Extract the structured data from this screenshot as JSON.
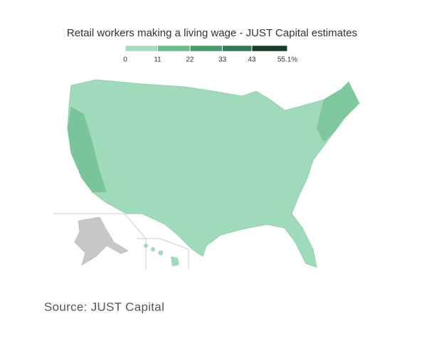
{
  "chart_data": {
    "type": "choropleth",
    "title": "Retail workers making a living wage - JUST Capital estimates",
    "legend": {
      "ticks": [
        0,
        11,
        22,
        33,
        43,
        {
          "value": 55.1,
          "label": "55.1%"
        }
      ],
      "colors": [
        "#a6dcbd",
        "#6abb8a",
        "#489c6c",
        "#2f7a52",
        "#173f2b"
      ]
    },
    "source": "Source: JUST Capital"
  }
}
